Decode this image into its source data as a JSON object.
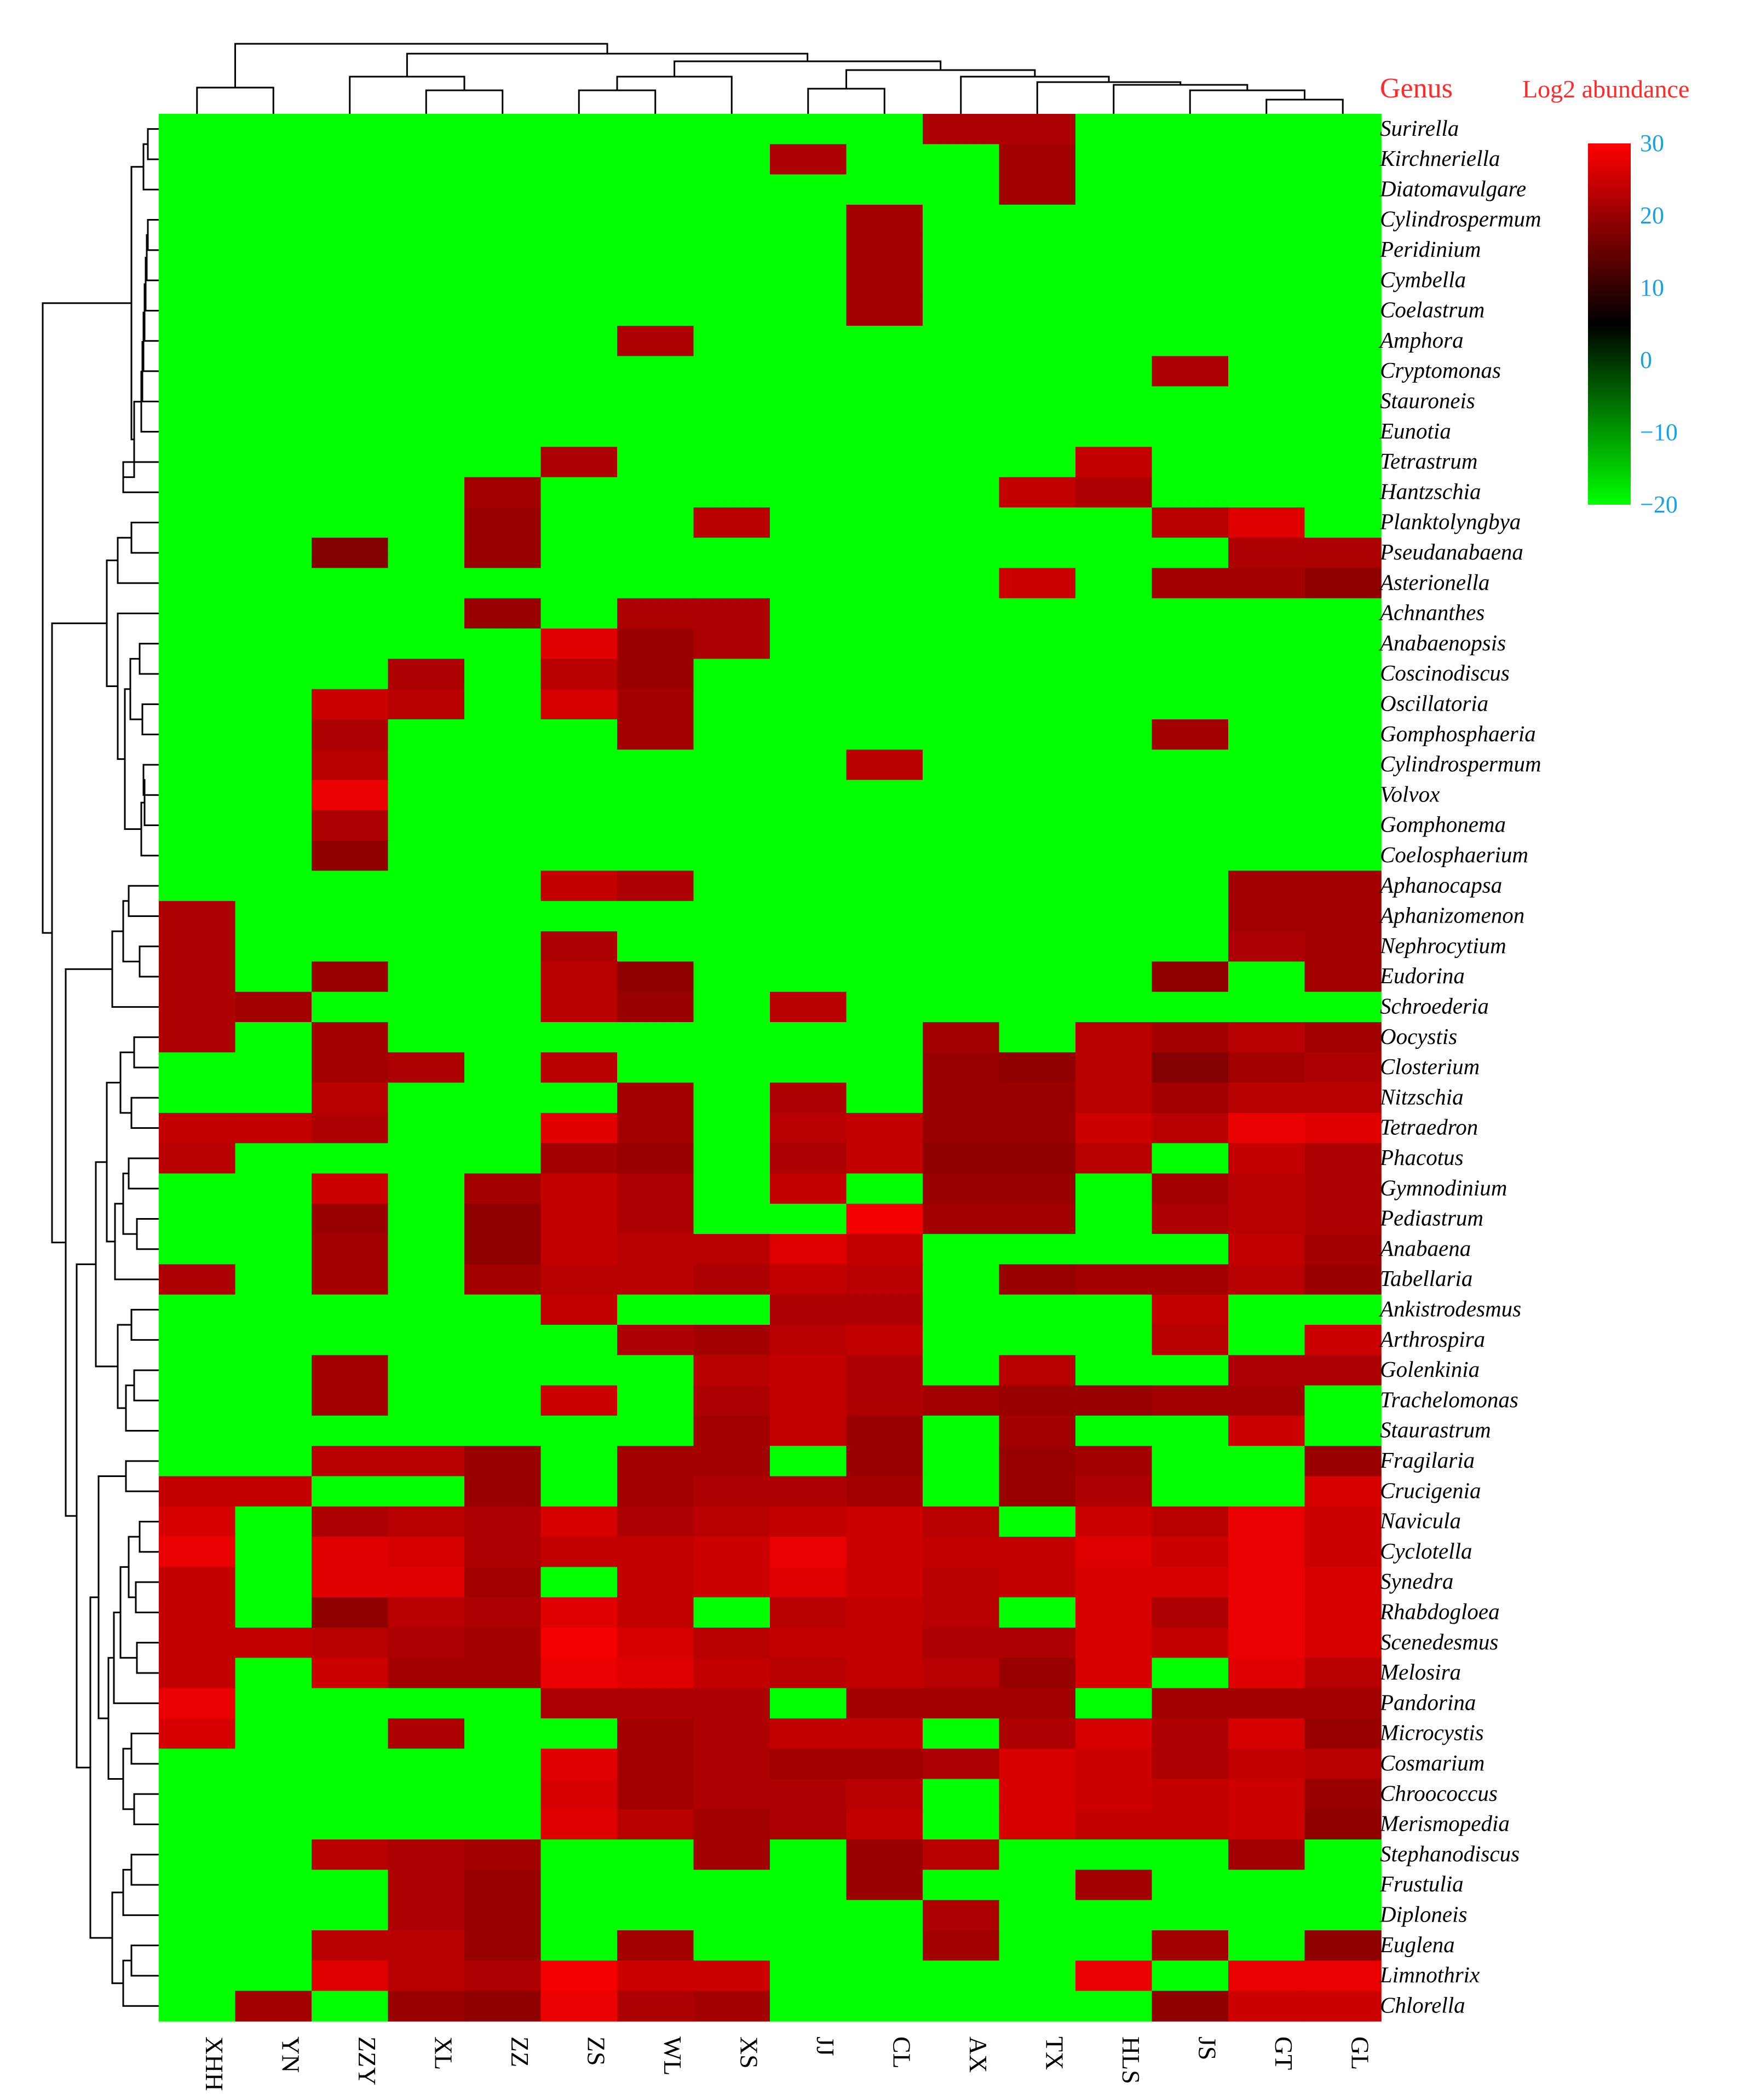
{
  "header": {
    "genus_label": "Genus",
    "legend_title": "Log2 abundance"
  },
  "colors": {
    "low": "#00ff00",
    "mid": "#000000",
    "high": "#ff0000",
    "colorbar_tick": "#1aa0e8",
    "header": "#ff2a2a"
  },
  "chart_data": {
    "type": "heatmap",
    "x_labels": [
      "XHH",
      "YN",
      "ZZY",
      "XL",
      "ZZ",
      "ZS",
      "WL",
      "XS",
      "JJ",
      "CL",
      "AX",
      "TX",
      "HLS",
      "JS",
      "GT",
      "GL"
    ],
    "y_labels": [
      "Surirella",
      "Kirchneriella",
      "Diatomavulgare",
      "Cylindrospermum",
      "Peridinium",
      "Cymbella",
      "Coelastrum",
      "Amphora",
      "Cryptomonas",
      "Stauroneis",
      "Eunotia",
      "Tetrastrum",
      "Hantzschia",
      "Planktolyngbya",
      "Pseudanabaena",
      "Asterionella",
      "Achnanthes",
      "Anabaenopsis",
      "Coscinodiscus",
      "Oscillatoria",
      "Gomphosphaeria",
      "Cylindrospermum",
      "Volvox",
      "Gomphonema",
      "Coelosphaerium",
      "Aphanocapsa",
      "Aphanizomenon",
      "Nephrocytium",
      "Eudorina",
      "Schroederia",
      "Oocystis",
      "Closterium",
      "Nitzschia",
      "Tetraedron",
      "Phacotus",
      "Gymnodinium",
      "Pediastrum",
      "Anabaena",
      "Tabellaria",
      "Ankistrodesmus",
      "Arthrospira",
      "Golenkinia",
      "Trachelomonas",
      "Staurastrum",
      "Fragilaria",
      "Crucigenia",
      "Navicula",
      "Cyclotella",
      "Synedra",
      "Rhabdogloea",
      "Scenedesmus",
      "Melosira",
      "Pandorina",
      "Microcystis",
      "Cosmarium",
      "Chroococcus",
      "Merismopedia",
      "Stephanodiscus",
      "Frustulia",
      "Diploneis",
      "Euglena",
      "Limnothrix",
      "Chlorella"
    ],
    "legend": {
      "title": "Log2 abundance",
      "min": -20,
      "max": 30,
      "ticks": [
        30,
        20,
        10,
        0,
        -10,
        -20
      ]
    },
    "note_values": "Absent genera are shown at -20 (green). Present values are estimated from color intensity.",
    "values": [
      [
        -20,
        -20,
        -20,
        -20,
        -20,
        -20,
        -20,
        -20,
        -20,
        -20,
        22,
        22,
        -20,
        -20,
        -20,
        -20
      ],
      [
        -20,
        -20,
        -20,
        -20,
        -20,
        -20,
        -20,
        -20,
        22,
        -20,
        -20,
        21,
        -20,
        -20,
        -20,
        -20
      ],
      [
        -20,
        -20,
        -20,
        -20,
        -20,
        -20,
        -20,
        -20,
        -20,
        -20,
        -20,
        21,
        -20,
        -20,
        -20,
        -20
      ],
      [
        -20,
        -20,
        -20,
        -20,
        -20,
        -20,
        -20,
        -20,
        -20,
        21,
        -20,
        -20,
        -20,
        -20,
        -20,
        -20
      ],
      [
        -20,
        -20,
        -20,
        -20,
        -20,
        -20,
        -20,
        -20,
        -20,
        21,
        -20,
        -20,
        -20,
        -20,
        -20,
        -20
      ],
      [
        -20,
        -20,
        -20,
        -20,
        -20,
        -20,
        -20,
        -20,
        -20,
        21,
        -20,
        -20,
        -20,
        -20,
        -20,
        -20
      ],
      [
        -20,
        -20,
        -20,
        -20,
        -20,
        -20,
        -20,
        -20,
        -20,
        21,
        -20,
        -20,
        -20,
        -20,
        -20,
        -20
      ],
      [
        -20,
        -20,
        -20,
        -20,
        -20,
        -20,
        22,
        -20,
        -20,
        -20,
        -20,
        -20,
        -20,
        -20,
        -20,
        -20
      ],
      [
        -20,
        -20,
        -20,
        -20,
        -20,
        -20,
        -20,
        -20,
        -20,
        -20,
        -20,
        -20,
        -20,
        22,
        -20,
        -20
      ],
      [
        -20,
        -20,
        -20,
        -20,
        -20,
        -20,
        -20,
        -20,
        -20,
        -20,
        -20,
        -20,
        -20,
        -20,
        -20,
        -20
      ],
      [
        -20,
        -20,
        -20,
        -20,
        -20,
        -20,
        -20,
        -20,
        -20,
        -20,
        -20,
        -20,
        -20,
        -20,
        -20,
        -20
      ],
      [
        -20,
        -20,
        -20,
        -20,
        -20,
        22,
        -20,
        -20,
        -20,
        -20,
        -20,
        -20,
        24,
        -20,
        -20,
        -20
      ],
      [
        -20,
        -20,
        -20,
        -20,
        21,
        -20,
        -20,
        -20,
        -20,
        -20,
        -20,
        24,
        22,
        -20,
        -20,
        -20
      ],
      [
        -20,
        -20,
        -20,
        -20,
        20,
        -20,
        -20,
        23,
        -20,
        -20,
        -20,
        -20,
        -20,
        23,
        27,
        -20
      ],
      [
        -20,
        -20,
        18,
        -20,
        20,
        -20,
        -20,
        -20,
        -20,
        -20,
        -20,
        -20,
        -20,
        -20,
        22,
        22
      ],
      [
        -20,
        -20,
        -20,
        -20,
        -20,
        -20,
        -20,
        -20,
        -20,
        -20,
        -20,
        25,
        -20,
        21,
        21,
        19
      ],
      [
        -20,
        -20,
        -20,
        -20,
        20,
        -20,
        22,
        22,
        -20,
        -20,
        -20,
        -20,
        -20,
        -20,
        -20,
        -20
      ],
      [
        -20,
        -20,
        -20,
        -20,
        -20,
        27,
        20,
        22,
        -20,
        -20,
        -20,
        -20,
        -20,
        -20,
        -20,
        -20
      ],
      [
        -20,
        -20,
        -20,
        22,
        -20,
        23,
        20,
        -20,
        -20,
        -20,
        -20,
        -20,
        -20,
        -20,
        -20,
        -20
      ],
      [
        -20,
        -20,
        25,
        23,
        -20,
        26,
        21,
        -20,
        -20,
        -20,
        -20,
        -20,
        -20,
        -20,
        -20,
        -20
      ],
      [
        -20,
        -20,
        22,
        -20,
        -20,
        -20,
        21,
        -20,
        -20,
        -20,
        -20,
        -20,
        -20,
        21,
        -20,
        -20
      ],
      [
        -20,
        -20,
        23,
        -20,
        -20,
        -20,
        -20,
        -20,
        -20,
        23,
        -20,
        -20,
        -20,
        -20,
        -20,
        -20
      ],
      [
        -20,
        -20,
        28,
        -20,
        -20,
        -20,
        -20,
        -20,
        -20,
        -20,
        -20,
        -20,
        -20,
        -20,
        -20,
        -20
      ],
      [
        -20,
        -20,
        22,
        -20,
        -20,
        -20,
        -20,
        -20,
        -20,
        -20,
        -20,
        -20,
        -20,
        -20,
        -20,
        -20
      ],
      [
        -20,
        -20,
        19,
        -20,
        -20,
        -20,
        -20,
        -20,
        -20,
        -20,
        -20,
        -20,
        -20,
        -20,
        -20,
        -20
      ],
      [
        -20,
        -20,
        -20,
        -20,
        -20,
        24,
        22,
        -20,
        -20,
        -20,
        -20,
        -20,
        -20,
        -20,
        21,
        21
      ],
      [
        22,
        -20,
        -20,
        -20,
        -20,
        -20,
        -20,
        -20,
        -20,
        -20,
        -20,
        -20,
        -20,
        -20,
        21,
        21
      ],
      [
        22,
        -20,
        -20,
        -20,
        -20,
        22,
        -20,
        -20,
        -20,
        -20,
        -20,
        -20,
        -20,
        -20,
        22,
        21
      ],
      [
        22,
        -20,
        20,
        -20,
        -20,
        23,
        19,
        -20,
        -20,
        -20,
        -20,
        -20,
        -20,
        19,
        -20,
        21
      ],
      [
        22,
        21,
        -20,
        -20,
        -20,
        23,
        20,
        -20,
        23,
        -20,
        -20,
        -20,
        -20,
        -20,
        -20,
        -20
      ],
      [
        22,
        -20,
        21,
        -20,
        -20,
        -20,
        -20,
        -20,
        -20,
        -20,
        21,
        -20,
        23,
        21,
        23,
        21
      ],
      [
        -20,
        -20,
        21,
        22,
        -20,
        23,
        -20,
        -20,
        -20,
        -20,
        20,
        19,
        23,
        18,
        21,
        22
      ],
      [
        -20,
        -20,
        23,
        -20,
        -20,
        -20,
        21,
        -20,
        22,
        -20,
        20,
        20,
        23,
        21,
        23,
        23
      ],
      [
        24,
        24,
        22,
        -20,
        -20,
        27,
        21,
        -20,
        23,
        24,
        20,
        20,
        25,
        23,
        28,
        27
      ],
      [
        23,
        -20,
        -20,
        -20,
        -20,
        21,
        20,
        -20,
        22,
        24,
        19,
        19,
        23,
        -20,
        24,
        22
      ],
      [
        -20,
        -20,
        25,
        -20,
        21,
        24,
        22,
        -20,
        24,
        -20,
        20,
        20,
        -20,
        21,
        23,
        22
      ],
      [
        -20,
        -20,
        20,
        -20,
        19,
        24,
        22,
        -20,
        -20,
        29,
        21,
        21,
        -20,
        22,
        23,
        22
      ],
      [
        -20,
        -20,
        21,
        -20,
        19,
        24,
        23,
        23,
        27,
        24,
        -20,
        -20,
        -20,
        -20,
        24,
        21
      ],
      [
        22,
        -20,
        21,
        -20,
        21,
        23,
        23,
        22,
        24,
        23,
        -20,
        20,
        21,
        21,
        23,
        20
      ],
      [
        -20,
        -20,
        -20,
        -20,
        -20,
        24,
        -20,
        -20,
        22,
        22,
        -20,
        -20,
        -20,
        24,
        -20,
        -20
      ],
      [
        -20,
        -20,
        -20,
        -20,
        -20,
        -20,
        22,
        21,
        23,
        24,
        -20,
        -20,
        -20,
        23,
        -20,
        25
      ],
      [
        -20,
        -20,
        21,
        -20,
        -20,
        -20,
        -20,
        23,
        24,
        22,
        -20,
        23,
        -20,
        -20,
        22,
        22
      ],
      [
        -20,
        -20,
        21,
        -20,
        -20,
        25,
        -20,
        22,
        24,
        22,
        21,
        20,
        20,
        21,
        21,
        -20
      ],
      [
        -20,
        -20,
        -20,
        -20,
        -20,
        -20,
        -20,
        21,
        24,
        20,
        -20,
        21,
        -20,
        -20,
        25,
        -20
      ],
      [
        -20,
        -20,
        23,
        23,
        20,
        -20,
        21,
        21,
        -20,
        20,
        -20,
        20,
        21,
        -20,
        -20,
        20
      ],
      [
        24,
        24,
        -20,
        -20,
        20,
        -20,
        21,
        22,
        22,
        21,
        -20,
        20,
        22,
        -20,
        -20,
        26
      ],
      [
        26,
        -20,
        22,
        23,
        22,
        26,
        22,
        23,
        24,
        25,
        23,
        -20,
        25,
        23,
        28,
        25
      ],
      [
        28,
        -20,
        27,
        26,
        22,
        24,
        24,
        25,
        28,
        25,
        24,
        24,
        27,
        25,
        28,
        25
      ],
      [
        24,
        -20,
        27,
        27,
        21,
        -20,
        24,
        25,
        27,
        25,
        23,
        24,
        26,
        26,
        28,
        26
      ],
      [
        24,
        -20,
        19,
        23,
        22,
        27,
        24,
        -20,
        23,
        24,
        23,
        -20,
        26,
        22,
        28,
        26
      ],
      [
        24,
        24,
        23,
        22,
        21,
        29,
        26,
        23,
        24,
        24,
        22,
        22,
        26,
        24,
        28,
        26
      ],
      [
        24,
        -20,
        25,
        21,
        21,
        28,
        27,
        24,
        23,
        24,
        23,
        20,
        26,
        -20,
        27,
        23
      ],
      [
        28,
        -20,
        -20,
        -20,
        -20,
        22,
        22,
        22,
        -20,
        21,
        21,
        21,
        -20,
        21,
        21,
        21
      ],
      [
        26,
        -20,
        -20,
        22,
        -20,
        -20,
        21,
        22,
        24,
        24,
        -20,
        22,
        26,
        22,
        26,
        20
      ],
      [
        -20,
        -20,
        -20,
        -20,
        -20,
        27,
        21,
        22,
        21,
        21,
        22,
        26,
        25,
        22,
        24,
        23
      ],
      [
        -20,
        -20,
        -20,
        -20,
        -20,
        26,
        21,
        22,
        22,
        23,
        -20,
        26,
        25,
        24,
        25,
        20
      ],
      [
        -20,
        -20,
        -20,
        -20,
        -20,
        27,
        23,
        21,
        22,
        24,
        -20,
        26,
        24,
        24,
        25,
        19
      ],
      [
        -20,
        -20,
        23,
        22,
        21,
        -20,
        -20,
        21,
        -20,
        20,
        23,
        -20,
        -20,
        -20,
        21,
        -20
      ],
      [
        -20,
        -20,
        -20,
        22,
        20,
        -20,
        -20,
        -20,
        -20,
        20,
        -20,
        -20,
        21,
        -20,
        -20,
        -20
      ],
      [
        -20,
        -20,
        -20,
        22,
        20,
        -20,
        -20,
        -20,
        -20,
        -20,
        22,
        -20,
        -20,
        -20,
        -20,
        -20
      ],
      [
        -20,
        -20,
        23,
        23,
        20,
        -20,
        21,
        -20,
        -20,
        -20,
        21,
        -20,
        -20,
        21,
        -20,
        19
      ],
      [
        -20,
        -20,
        27,
        23,
        22,
        29,
        25,
        25,
        -20,
        -20,
        -20,
        -20,
        28,
        -20,
        28,
        28
      ],
      [
        -20,
        21,
        -20,
        20,
        19,
        28,
        22,
        21,
        -20,
        -20,
        -20,
        -20,
        -20,
        19,
        25,
        25
      ]
    ],
    "row_dendrogram": [
      [
        1,
        2
      ],
      [
        3,
        4
      ],
      [
        5,
        6
      ],
      [
        7,
        8
      ],
      [
        9,
        10
      ],
      [
        11,
        12
      ],
      [
        0,
        50
      ],
      [
        16,
        17
      ],
      [
        17,
        18
      ],
      [
        24,
        25
      ],
      [
        19,
        20
      ],
      [
        21,
        22
      ],
      [
        15,
        23
      ],
      [
        14,
        67
      ],
      [
        67,
        68
      ],
      [
        70,
        71
      ],
      [
        26,
        27
      ],
      [
        28,
        29
      ],
      [
        30,
        31
      ],
      [
        32,
        33
      ],
      [
        34,
        35
      ],
      [
        36,
        37
      ],
      [
        40,
        41
      ],
      [
        42,
        43
      ],
      [
        46,
        47
      ],
      [
        48,
        49
      ],
      [
        50,
        51
      ],
      [
        52,
        53
      ]
    ]
  }
}
